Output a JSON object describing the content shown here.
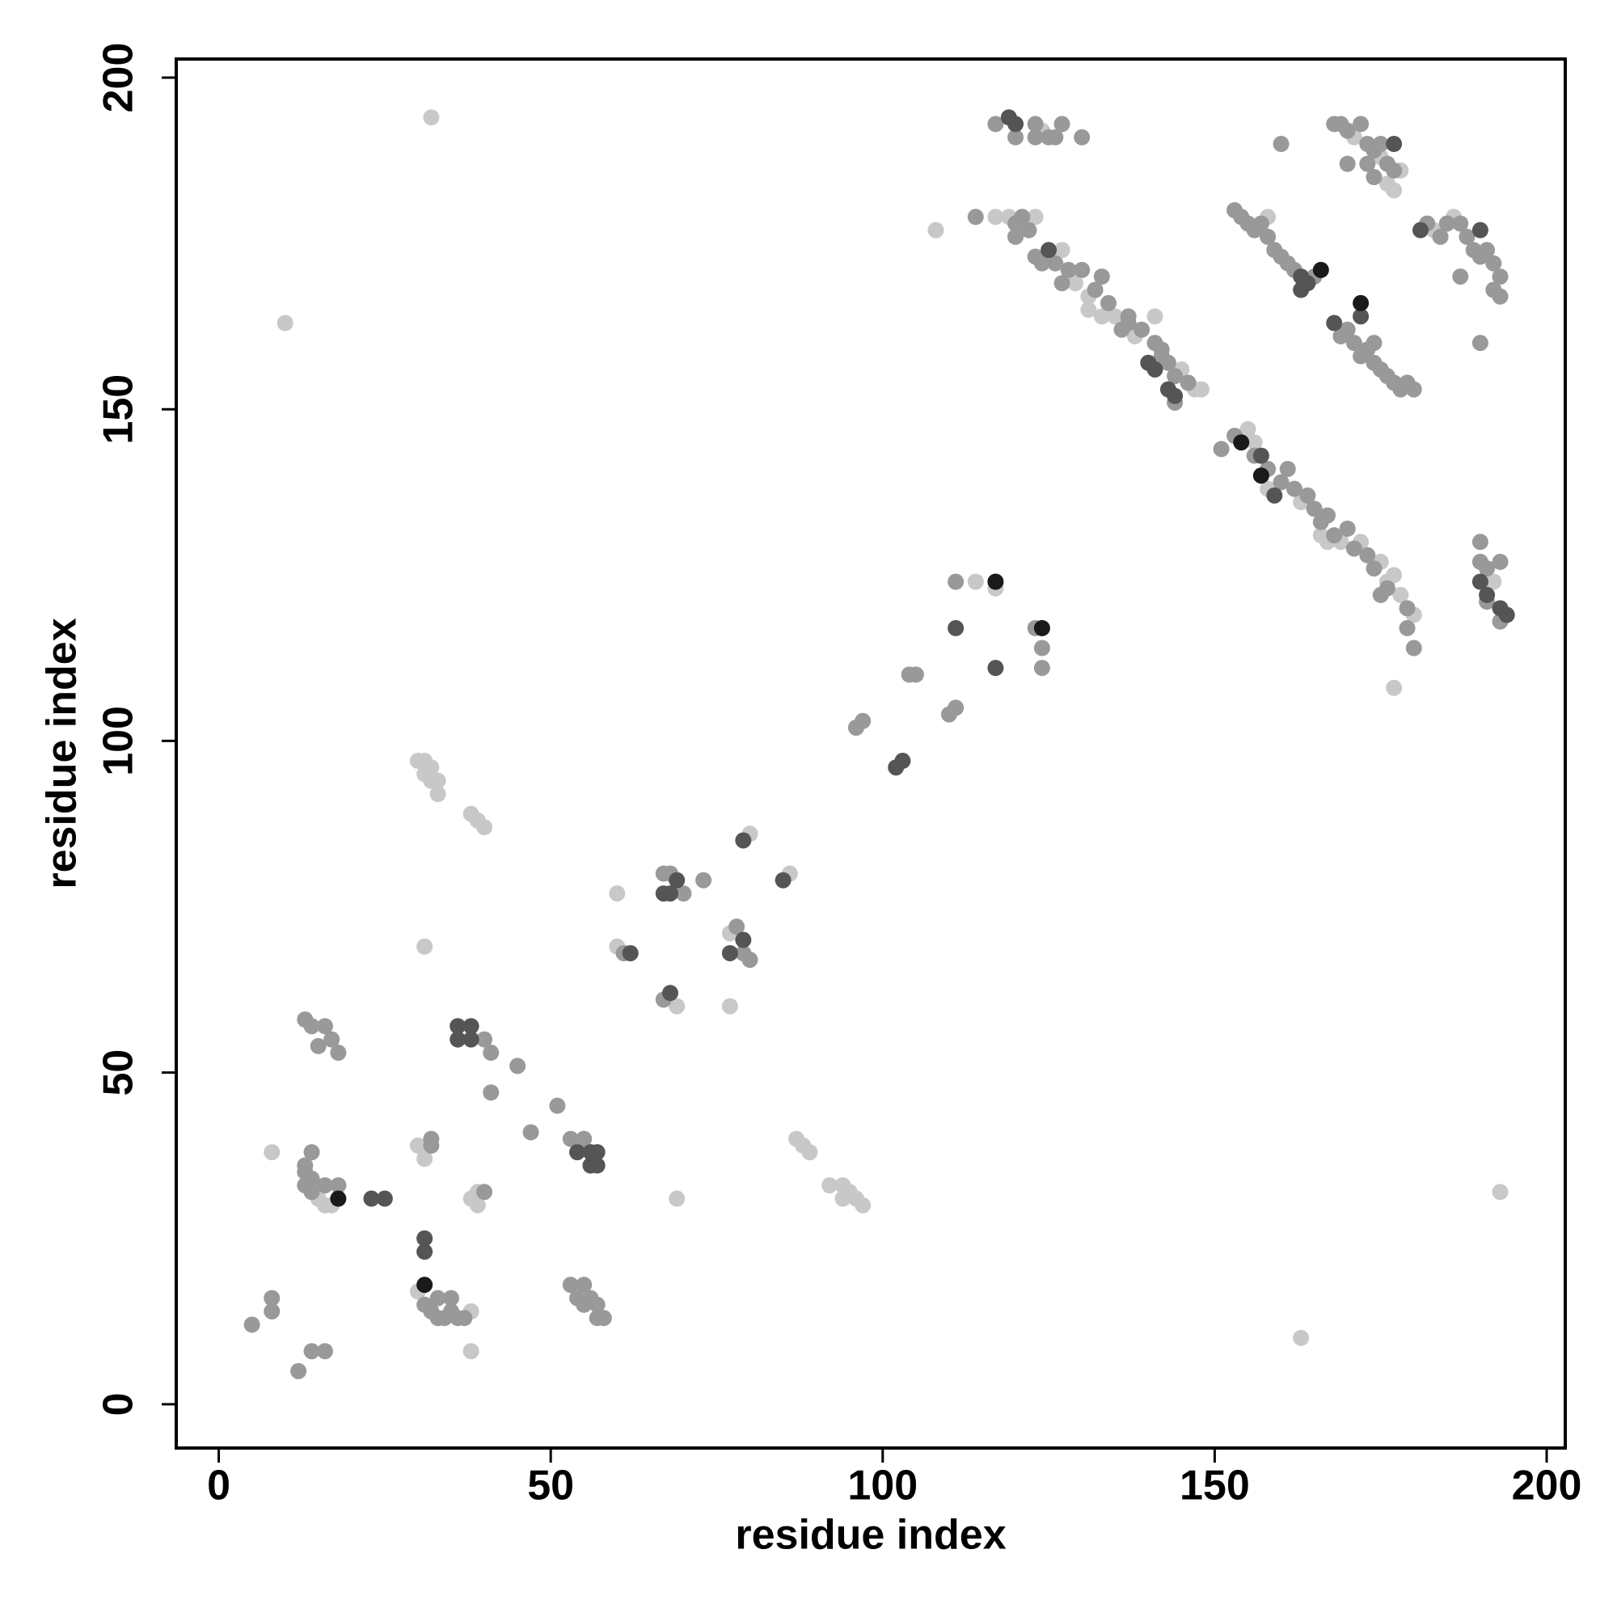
{
  "chart_data": {
    "type": "scatter",
    "x_label": "residue index",
    "y_label": "residue index",
    "xlim": [
      -6.4,
      202.8
    ],
    "ylim": [
      -6.6,
      202.8
    ],
    "xticks": [
      0,
      50,
      100,
      150,
      200
    ],
    "yticks": [
      0,
      50,
      100,
      150,
      200
    ],
    "grid": false,
    "series": [
      {
        "color": "#c8c8c8",
        "x": [
          8,
          10,
          32,
          31,
          30,
          31,
          32,
          31,
          32,
          33,
          33,
          38,
          39,
          40,
          30,
          31,
          38,
          39,
          39,
          38,
          38,
          30,
          69,
          60,
          60,
          69,
          77,
          77,
          80,
          86,
          87,
          88,
          89,
          92,
          94,
          95,
          96,
          97,
          94,
          114,
          117,
          108,
          124,
          117,
          119,
          123,
          127,
          129,
          131,
          131,
          133,
          135,
          138,
          141,
          145,
          147,
          148,
          155,
          156,
          158,
          163,
          166,
          167,
          169,
          172,
          175,
          176,
          177,
          178,
          180,
          177,
          193,
          163,
          158,
          176,
          177,
          178,
          175,
          171,
          183,
          186,
          192,
          16,
          17,
          15
        ],
        "values": [
          38,
          163,
          194,
          69,
          97,
          97,
          96,
          95,
          94,
          94,
          92,
          89,
          88,
          87,
          39,
          37,
          31,
          32,
          30,
          14,
          8,
          17,
          31,
          77,
          69,
          60,
          60,
          71,
          86,
          80,
          40,
          39,
          38,
          33,
          33,
          32,
          31,
          30,
          31,
          124,
          123,
          177,
          192,
          179,
          179,
          179,
          174,
          169,
          167,
          165,
          164,
          164,
          161,
          164,
          156,
          153,
          153,
          147,
          145,
          138,
          136,
          131,
          130,
          130,
          130,
          127,
          124,
          125,
          122,
          119,
          108,
          32,
          10,
          179,
          184,
          183,
          186,
          188,
          191,
          177,
          179,
          124,
          30,
          30,
          31
        ]
      },
      {
        "color": "#999999",
        "x": [
          5,
          8,
          8,
          12,
          14,
          16,
          13,
          14,
          16,
          15,
          17,
          18,
          13,
          13,
          14,
          13,
          14,
          16,
          18,
          14,
          40,
          41,
          41,
          45,
          47,
          51,
          53,
          55,
          32,
          32,
          40,
          31,
          32,
          33,
          34,
          35,
          36,
          37,
          35,
          33,
          53,
          55,
          54,
          56,
          57,
          58,
          57,
          55,
          61,
          67,
          68,
          70,
          73,
          67,
          78,
          79,
          80,
          96,
          97,
          104,
          105,
          110,
          111,
          111,
          123,
          124,
          124,
          117,
          120,
          123,
          123,
          125,
          126,
          127,
          130,
          114,
          120,
          121,
          122,
          120,
          123,
          124,
          126,
          128,
          127,
          130,
          132,
          133,
          134,
          136,
          137,
          139,
          142,
          142,
          143,
          144,
          146,
          144,
          141,
          137,
          151,
          153,
          158,
          156,
          160,
          161,
          162,
          164,
          165,
          166,
          167,
          168,
          170,
          171,
          173,
          174,
          175,
          176,
          179,
          179,
          180,
          190,
          190,
          191,
          193,
          191,
          193,
          153,
          154,
          155,
          156,
          157,
          158,
          159,
          160,
          161,
          162,
          165,
          169,
          170,
          171,
          173,
          174,
          175,
          176,
          177,
          178,
          179,
          180,
          174,
          172,
          160,
          168,
          169,
          170,
          172,
          173,
          174,
          176,
          177,
          173,
          175,
          170,
          174,
          182,
          184,
          185,
          187,
          188,
          189,
          190,
          191,
          192,
          193,
          192,
          193,
          187,
          190
        ],
        "values": [
          12,
          16,
          14,
          5,
          8,
          8,
          58,
          57,
          57,
          54,
          55,
          53,
          36,
          35,
          34,
          33,
          32,
          33,
          33,
          38,
          55,
          53,
          47,
          51,
          41,
          45,
          40,
          40,
          40,
          39,
          32,
          15,
          14,
          13,
          13,
          14,
          13,
          13,
          16,
          16,
          18,
          18,
          16,
          16,
          15,
          13,
          13,
          15,
          68,
          80,
          80,
          77,
          79,
          61,
          72,
          68,
          67,
          102,
          103,
          110,
          110,
          104,
          105,
          124,
          117,
          114,
          111,
          193,
          191,
          193,
          191,
          191,
          191,
          193,
          191,
          179,
          178,
          179,
          177,
          176,
          173,
          172,
          172,
          171,
          169,
          171,
          168,
          170,
          166,
          162,
          163,
          162,
          159,
          158,
          157,
          155,
          154,
          151,
          160,
          164,
          144,
          146,
          141,
          143,
          139,
          141,
          138,
          137,
          135,
          133,
          134,
          131,
          132,
          129,
          128,
          126,
          122,
          123,
          120,
          117,
          114,
          130,
          127,
          126,
          127,
          121,
          118,
          180,
          179,
          178,
          177,
          178,
          176,
          174,
          173,
          172,
          171,
          170,
          161,
          162,
          160,
          159,
          157,
          156,
          155,
          154,
          153,
          154,
          153,
          160,
          158,
          190,
          193,
          193,
          192,
          193,
          190,
          189,
          187,
          186,
          187,
          190,
          187,
          185,
          178,
          176,
          178,
          178,
          176,
          174,
          173,
          174,
          172,
          170,
          168,
          167,
          170,
          160
        ]
      },
      {
        "color": "#555555",
        "x": [
          23,
          25,
          36,
          38,
          36,
          38,
          54,
          56,
          57,
          56,
          57,
          31,
          31,
          62,
          69,
          67,
          68,
          68,
          79,
          77,
          79,
          85,
          102,
          103,
          111,
          117,
          119,
          120,
          125,
          140,
          141,
          143,
          144,
          157,
          159,
          163,
          164,
          163,
          168,
          172,
          177,
          181,
          190,
          190,
          191,
          193,
          194
        ],
        "values": [
          31,
          31,
          57,
          57,
          55,
          55,
          38,
          38,
          38,
          36,
          36,
          25,
          23,
          68,
          79,
          77,
          77,
          62,
          70,
          68,
          85,
          79,
          96,
          97,
          117,
          111,
          194,
          193,
          174,
          157,
          156,
          153,
          152,
          143,
          137,
          170,
          169,
          168,
          163,
          164,
          190,
          177,
          177,
          124,
          122,
          120,
          119
        ]
      },
      {
        "color": "#1a1a1a",
        "x": [
          18,
          31,
          117,
          124,
          154,
          157,
          166,
          172
        ],
        "values": [
          31,
          18,
          124,
          117,
          145,
          140,
          171,
          166
        ]
      }
    ]
  }
}
